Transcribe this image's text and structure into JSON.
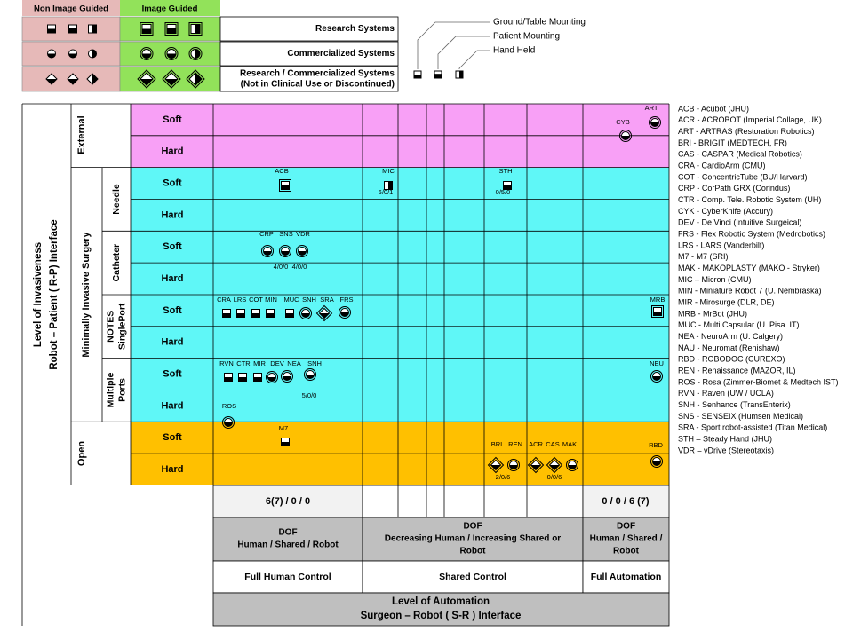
{
  "legend": {
    "headers": [
      "Non Image Guided",
      "Image Guided"
    ],
    "rows": [
      [
        "Research Systems"
      ],
      [
        "Commercialized Systems"
      ],
      [
        "Research / Commercialized Systems",
        "(Not in Clinical Use or Discontinued)"
      ]
    ]
  },
  "mounting": [
    "Ground/Table Mounting",
    "Patient Mounting",
    "Hand Held"
  ],
  "y_axis": [
    "Level of Invasiveness",
    "Robot – Patient ( R-P) Interface"
  ],
  "groups": {
    "external": "External",
    "mis": "Minimally  Invasive  Surgery",
    "open": "Open"
  },
  "subgroups": [
    [
      "Needle"
    ],
    [
      "Catheter"
    ],
    [
      "NOTES",
      "SinglePort"
    ],
    [
      "Multiple",
      "Ports"
    ]
  ],
  "row_labels": [
    "Soft",
    "Hard",
    "Soft",
    "Hard",
    "Soft",
    "Hard",
    "Soft",
    "Hard",
    "Soft",
    "Hard",
    "Soft",
    "Hard"
  ],
  "systems": [
    "ART",
    "CYB",
    "ACB",
    "MIC",
    "STH",
    "CRP",
    "SNS",
    "VDR",
    "CRA",
    "LRS",
    "COT",
    "MIN",
    "MUC",
    "SNH",
    "SRA",
    "FRS",
    "MRB",
    "RVN",
    "CTR",
    "MIR",
    "DEV",
    "NEA",
    "SNH",
    "NEU",
    "ROS",
    "M7",
    "BRI",
    "REN",
    "ACR",
    "CAS",
    "MAK",
    "RBD"
  ],
  "dof_notes": [
    "6/0/1",
    "0/5/0",
    "4/0/0",
    "4/0/0",
    "5/0/0",
    "2/0/6",
    "0/0/6"
  ],
  "bottom": {
    "dof_left": "6(7) / 0 / 0",
    "dof_right": "0 / 0 / 6 (7)",
    "dof_headers": [
      [
        "DOF",
        "Human / Shared / Robot"
      ],
      [
        "DOF",
        "Decreasing Human / Increasing Shared or",
        "Robot"
      ],
      [
        "DOF",
        "Human / Shared /",
        "Robot"
      ]
    ],
    "controls": [
      "Full Human Control",
      "Shared Control",
      "Full Automation"
    ],
    "x_axis": [
      "Level of Automation",
      "Surgeon – Robot  ( S-R ) Interface"
    ]
  },
  "abbreviations": [
    "ACB - Acubot (JHU)",
    "ACR - ACROBOT (Imperial Collage, UK)",
    "ART - ARTRAS (Restoration Robotics)",
    "BRI - BRIGIT (MEDTECH, FR)",
    "CAS - CASPAR (Medical Robotics)",
    "CRA - CardioArm (CMU)",
    "COT - ConcentricTube (BU/Harvard)",
    "CRP - CorPath GRX (Corindus)",
    "CTR - Comp. Tele. Robotic System (UH)",
    "CYK - CyberKnife (Accury)",
    "DEV - De Vinci (Intuitive Surgeical)",
    "FRS - Flex Robotic System (Medrobotics)",
    "LRS - LARS (Vanderbilt)",
    "M7 - M7 (SRI)",
    "MAK - MAKOPLASTY (MAKO - Stryker)",
    "MIC – Micron (CMU)",
    "MIN - Miniature Robot 7 (U. Nembraska)",
    "MIR - Mirosurge (DLR, DE)",
    "MRB - MrBot (JHU)",
    "MUC - Multi Capsular (U. Pisa. IT)",
    "NEA - NeuroArm (U. Calgery)",
    "NAU - Neuromat (Renishaw)",
    "RBD - ROBODOC (CUREXO)",
    "REN - Renaissance (MAZOR, IL)",
    "ROS - Rosa (Zimmer-Biomet & Medtech IST)",
    "RVN - Raven (UW / UCLA)",
    "SNH - Senhance (TransEnterix)",
    "SNS - SENSEIX (Humsen Medical)",
    "SRA - Sport robot-assisted (Titan Medical)",
    "STH – Steady Hand (JHU)",
    "VDR – vDrive (Stereotaxis)"
  ]
}
